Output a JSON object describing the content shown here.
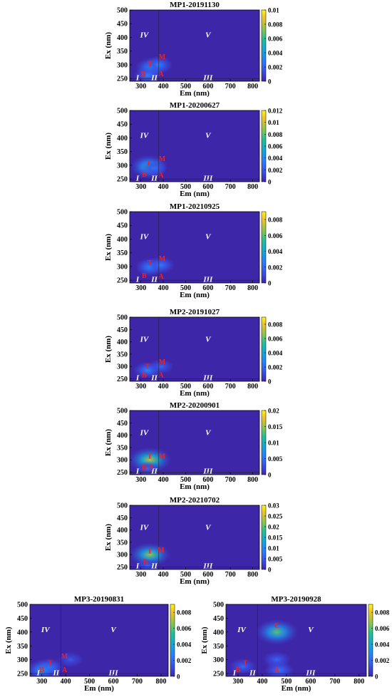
{
  "chart_data": [
    {
      "type": "heatmap",
      "title": "MP1-20191130",
      "xlabel": "Em (nm)",
      "ylabel": "Ex (nm)",
      "xlim": [
        250,
        830
      ],
      "ylim": [
        240,
        500
      ],
      "xticks": [
        "300",
        "400",
        "500",
        "600",
        "700",
        "800"
      ],
      "yticks": [
        "250",
        "300",
        "350",
        "400",
        "450",
        "500"
      ],
      "colorbar": {
        "min": 0,
        "max": 0.01,
        "ticks": [
          "0",
          "0.002",
          "0.004",
          "0.006",
          "0.008",
          "0.01"
        ]
      },
      "region_labels": [
        "I",
        "II",
        "III",
        "IV",
        "V"
      ],
      "peak_labels": [
        {
          "text": "T",
          "em": 340,
          "ex": 295
        },
        {
          "text": "M",
          "em": 395,
          "ex": 320
        },
        {
          "text": "B",
          "em": 310,
          "ex": 258
        },
        {
          "text": "A",
          "em": 390,
          "ex": 258
        }
      ],
      "hotspots": [
        {
          "em": 345,
          "ex": 290,
          "value": 0.004
        },
        {
          "em": 380,
          "ex": 300,
          "value": 0.003
        },
        {
          "em": 330,
          "ex": 262,
          "value": 0.003
        }
      ]
    },
    {
      "type": "heatmap",
      "title": "MP1-20200627",
      "xlabel": "Em (nm)",
      "ylabel": "Ex (nm)",
      "xlim": [
        250,
        830
      ],
      "ylim": [
        240,
        500
      ],
      "xticks": [
        "300",
        "400",
        "500",
        "600",
        "700",
        "800"
      ],
      "yticks": [
        "250",
        "300",
        "350",
        "400",
        "450",
        "500"
      ],
      "colorbar": {
        "min": 0,
        "max": 0.012,
        "ticks": [
          "0",
          "0.002",
          "0.004",
          "0.006",
          "0.008",
          "0.01",
          "0.012"
        ]
      },
      "region_labels": [
        "I",
        "II",
        "III",
        "IV",
        "V"
      ],
      "peak_labels": [
        {
          "text": "T",
          "em": 335,
          "ex": 300
        },
        {
          "text": "M",
          "em": 395,
          "ex": 315
        },
        {
          "text": "B",
          "em": 315,
          "ex": 258
        },
        {
          "text": "A",
          "em": 390,
          "ex": 256
        }
      ],
      "hotspots": [
        {
          "em": 335,
          "ex": 295,
          "value": 0.007
        },
        {
          "em": 360,
          "ex": 290,
          "value": 0.003
        }
      ]
    },
    {
      "type": "heatmap",
      "title": "MP1-20210925",
      "xlabel": "Em (nm)",
      "ylabel": "Ex (nm)",
      "xlim": [
        250,
        830
      ],
      "ylim": [
        240,
        500
      ],
      "xticks": [
        "300",
        "400",
        "500",
        "600",
        "700",
        "800"
      ],
      "yticks": [
        "250",
        "300",
        "350",
        "400",
        "450",
        "500"
      ],
      "colorbar": {
        "min": 0,
        "max": 0.009,
        "ticks": [
          "0",
          "0.002",
          "0.004",
          "0.006",
          "0.008"
        ]
      },
      "region_labels": [
        "I",
        "II",
        "III",
        "IV",
        "V"
      ],
      "peak_labels": [
        {
          "text": "T",
          "em": 340,
          "ex": 305
        },
        {
          "text": "M",
          "em": 395,
          "ex": 320
        },
        {
          "text": "B",
          "em": 315,
          "ex": 258
        },
        {
          "text": "A",
          "em": 390,
          "ex": 256
        }
      ],
      "hotspots": [
        {
          "em": 340,
          "ex": 298,
          "value": 0.003
        },
        {
          "em": 390,
          "ex": 305,
          "value": 0.0025
        }
      ]
    },
    {
      "type": "heatmap",
      "title": "MP2-20191027",
      "xlabel": "Em (nm)",
      "ylabel": "Ex (nm)",
      "xlim": [
        250,
        830
      ],
      "ylim": [
        240,
        500
      ],
      "xticks": [
        "300",
        "400",
        "500",
        "600",
        "700",
        "800"
      ],
      "yticks": [
        "250",
        "300",
        "350",
        "400",
        "450",
        "500"
      ],
      "colorbar": {
        "min": 0,
        "max": 0.009,
        "ticks": [
          "0",
          "0.002",
          "0.004",
          "0.006",
          "0.008"
        ]
      },
      "region_labels": [
        "I",
        "II",
        "III",
        "IV",
        "V"
      ],
      "peak_labels": [
        {
          "text": "T",
          "em": 330,
          "ex": 290
        },
        {
          "text": "M",
          "em": 395,
          "ex": 310
        },
        {
          "text": "B",
          "em": 315,
          "ex": 256
        },
        {
          "text": "A",
          "em": 390,
          "ex": 256
        }
      ],
      "hotspots": [
        {
          "em": 330,
          "ex": 285,
          "value": 0.003
        },
        {
          "em": 390,
          "ex": 300,
          "value": 0.002
        }
      ]
    },
    {
      "type": "heatmap",
      "title": "MP2-20200901",
      "xlabel": "Em (nm)",
      "ylabel": "Ex (nm)",
      "xlim": [
        250,
        830
      ],
      "ylim": [
        240,
        500
      ],
      "xticks": [
        "300",
        "400",
        "500",
        "600",
        "700",
        "800"
      ],
      "yticks": [
        "250",
        "300",
        "350",
        "400",
        "450",
        "500"
      ],
      "colorbar": {
        "min": 0,
        "max": 0.02,
        "ticks": [
          "0",
          "0.005",
          "0.01",
          "0.015",
          "0.02"
        ]
      },
      "region_labels": [
        "I",
        "II",
        "III",
        "IV",
        "V"
      ],
      "peak_labels": [
        {
          "text": "T",
          "em": 340,
          "ex": 305
        },
        {
          "text": "M",
          "em": 395,
          "ex": 305
        },
        {
          "text": "B",
          "em": 315,
          "ex": 260
        },
        {
          "text": "A",
          "em": 345,
          "ex": 262
        }
      ],
      "hotspots": [
        {
          "em": 340,
          "ex": 300,
          "value": 0.016
        },
        {
          "em": 330,
          "ex": 265,
          "value": 0.004
        }
      ]
    },
    {
      "type": "heatmap",
      "title": "MP2-20210702",
      "xlabel": "Em (nm)",
      "ylabel": "Ex (nm)",
      "xlim": [
        250,
        830
      ],
      "ylim": [
        240,
        500
      ],
      "xticks": [
        "300",
        "400",
        "500",
        "600",
        "700",
        "800"
      ],
      "yticks": [
        "250",
        "300",
        "350",
        "400",
        "450",
        "500"
      ],
      "colorbar": {
        "min": 0,
        "max": 0.03,
        "ticks": [
          "0",
          "0.005",
          "0.01",
          "0.015",
          "0.02",
          "0.025",
          "0.03"
        ]
      },
      "region_labels": [
        "I",
        "II",
        "III",
        "IV",
        "V"
      ],
      "peak_labels": [
        {
          "text": "T",
          "em": 340,
          "ex": 305
        },
        {
          "text": "M",
          "em": 390,
          "ex": 310
        },
        {
          "text": "B",
          "em": 320,
          "ex": 262
        }
      ],
      "hotspots": [
        {
          "em": 340,
          "ex": 300,
          "value": 0.022
        },
        {
          "em": 330,
          "ex": 255,
          "value": 0.006
        }
      ]
    },
    {
      "type": "heatmap",
      "title": "MP3-20190831",
      "xlabel": "Em (nm)",
      "ylabel": "Ex (nm)",
      "xlim": [
        250,
        830
      ],
      "ylim": [
        240,
        500
      ],
      "xticks": [
        "300",
        "400",
        "500",
        "600",
        "700",
        "800"
      ],
      "yticks": [
        "250",
        "300",
        "350",
        "400",
        "450",
        "500"
      ],
      "colorbar": {
        "min": 0,
        "max": 0.009,
        "ticks": [
          "0",
          "0.002",
          "0.004",
          "0.006",
          "0.008"
        ]
      },
      "region_labels": [
        "I",
        "II",
        "III",
        "IV",
        "V"
      ],
      "peak_labels": [
        {
          "text": "T",
          "em": 335,
          "ex": 280
        },
        {
          "text": "M",
          "em": 395,
          "ex": 305
        },
        {
          "text": "B",
          "em": 300,
          "ex": 255
        },
        {
          "text": "A",
          "em": 395,
          "ex": 255
        }
      ],
      "hotspots": [
        {
          "em": 330,
          "ex": 272,
          "value": 0.003
        },
        {
          "em": 300,
          "ex": 262,
          "value": 0.0035
        },
        {
          "em": 420,
          "ex": 300,
          "value": 0.0015
        }
      ]
    },
    {
      "type": "heatmap",
      "title": "MP3-20190928",
      "xlabel": "Em (nm)",
      "ylabel": "Ex (nm)",
      "xlim": [
        250,
        830
      ],
      "ylim": [
        240,
        500
      ],
      "xticks": [
        "300",
        "400",
        "500",
        "600",
        "700",
        "800"
      ],
      "yticks": [
        "250",
        "300",
        "350",
        "400",
        "450",
        "500"
      ],
      "colorbar": {
        "min": 0,
        "max": 0.009,
        "ticks": [
          "0",
          "0.002",
          "0.004",
          "0.006",
          "0.008"
        ]
      },
      "region_labels": [
        "I",
        "II",
        "III",
        "IV",
        "V"
      ],
      "peak_labels": [
        {
          "text": "C",
          "em": 460,
          "ex": 415
        },
        {
          "text": "T",
          "em": 330,
          "ex": 280
        },
        {
          "text": "B",
          "em": 300,
          "ex": 255
        },
        {
          "text": "A",
          "em": 460,
          "ex": 255
        }
      ],
      "hotspots": [
        {
          "em": 460,
          "ex": 400,
          "value": 0.006
        },
        {
          "em": 460,
          "ex": 300,
          "value": 0.002
        },
        {
          "em": 470,
          "ex": 262,
          "value": 0.0025
        },
        {
          "em": 320,
          "ex": 275,
          "value": 0.002
        }
      ]
    }
  ]
}
